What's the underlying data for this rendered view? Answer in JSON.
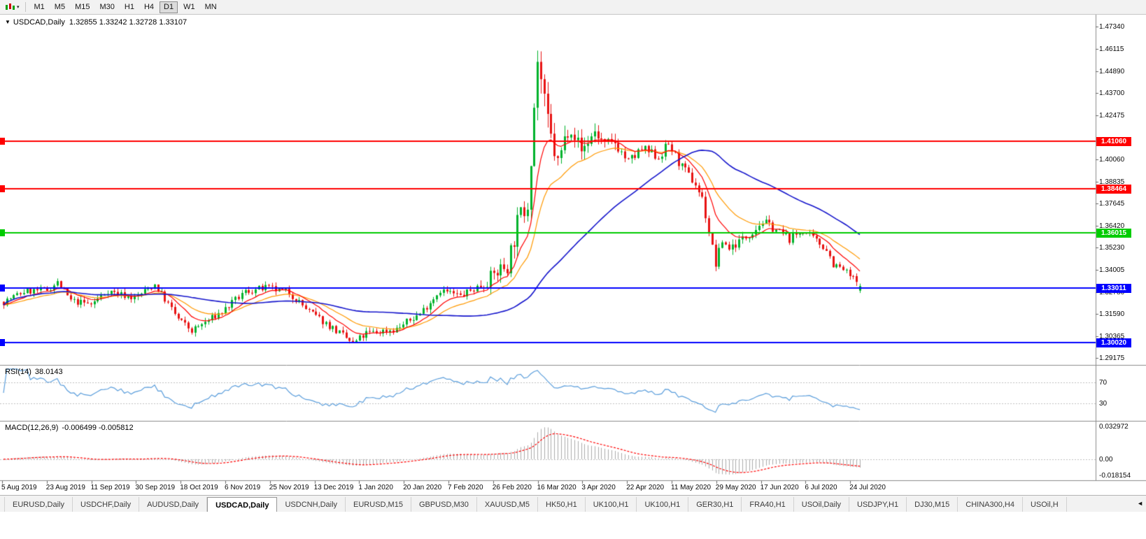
{
  "toolbar": {
    "timeframes": [
      "M1",
      "M5",
      "M15",
      "M30",
      "H1",
      "H4",
      "D1",
      "W1",
      "MN"
    ],
    "active_timeframe": "D1"
  },
  "chart": {
    "symbol_title": "USDCAD,Daily",
    "ohlc_text": "1.32855 1.33242 1.32728 1.33107"
  },
  "rsi_panel": {
    "label": "RSI(14)",
    "value": "38.0143",
    "levels": [
      70,
      30
    ]
  },
  "macd_panel": {
    "label": "MACD(12,26,9)",
    "values": "-0.006499 -0.005812",
    "scale": {
      "max": 0.033,
      "min": -0.0182
    },
    "axis": [
      {
        "value": 0.032972,
        "label": "0.032972"
      },
      {
        "value": 0,
        "label": "0.00"
      },
      {
        "value": -0.018154,
        "label": "-0.018154"
      }
    ]
  },
  "tabs": {
    "items": [
      "EURUSD,Daily",
      "USDCHF,Daily",
      "AUDUSD,Daily",
      "USDCAD,Daily",
      "USDCNH,Daily",
      "EURUSD,M15",
      "GBPUSD,M30",
      "XAUUSD,M5",
      "HK50,H1",
      "UK100,H1",
      "UK100,H1",
      "GER30,H1",
      "FRA40,H1",
      "USOil,Daily",
      "USDJPY,H1",
      "DJ30,M15",
      "CHINA300,H4",
      "USOil,H"
    ],
    "active": "USDCAD,Daily",
    "scroll_arrow": "◄"
  },
  "colors": {
    "candle_up": "#00B22C",
    "candle_down": "#E81212",
    "ma_fast": "#FF0000",
    "ma_mid": "#FF9900",
    "ma_slow": "#1515CC",
    "rsi_line": "#5B9EDC",
    "macd_histogram": "#ABABAB",
    "macd_signal": "#FF0000",
    "level_dotted": "#C0C0C0",
    "separator": "#8C8C8C",
    "axis_text": "#0A0A0A",
    "toolbar_bg": "#F2F2F2"
  },
  "chart_data": {
    "type": "candlestick",
    "title": "USDCAD,Daily",
    "candle_count": 256,
    "last_candle_ohlc": {
      "open": 1.32855,
      "high": 1.33242,
      "low": 1.32728,
      "close": 1.33107
    },
    "y_axis": {
      "min": 1.2878,
      "max": 1.48,
      "ticks": [
        1.4734,
        1.46115,
        1.4489,
        1.437,
        1.42475,
        1.4006,
        1.38835,
        1.37645,
        1.3642,
        1.3523,
        1.34005,
        1.3278,
        1.3159,
        1.30365,
        1.29175
      ]
    },
    "x_axis": {
      "labels": [
        "5 Aug 2019",
        "23 Aug 2019",
        "11 Sep 2019",
        "30 Sep 2019",
        "18 Oct 2019",
        "6 Nov 2019",
        "25 Nov 2019",
        "13 Dec 2019",
        "1 Jan 2020",
        "20 Jan 2020",
        "7 Feb 2020",
        "26 Feb 2020",
        "16 Mar 2020",
        "3 Apr 2020",
        "22 Apr 2020",
        "11 May 2020",
        "29 May 2020",
        "17 Jun 2020",
        "6 Jul 2020",
        "24 Jul 2020"
      ],
      "pixels_per_label": 63.8
    },
    "hlines": [
      {
        "price": 1.4106,
        "label": "1.41060",
        "color": "#FF0000"
      },
      {
        "price": 1.38464,
        "label": "1.38464",
        "color": "#FF0000"
      },
      {
        "price": 1.36015,
        "label": "1.36015",
        "color": "#00CC00"
      },
      {
        "price": 1.33011,
        "label": "1.33011",
        "color": "#0000FF"
      },
      {
        "price": 1.3002,
        "label": "1.30020",
        "color": "#0000FF"
      }
    ],
    "close_path": [
      [
        0,
        1.3225
      ],
      [
        6,
        1.328
      ],
      [
        13,
        1.329
      ],
      [
        16,
        1.333
      ],
      [
        20,
        1.323
      ],
      [
        26,
        1.321
      ],
      [
        31,
        1.3285
      ],
      [
        39,
        1.3245
      ],
      [
        45,
        1.332
      ],
      [
        52,
        1.313
      ],
      [
        56,
        1.3065
      ],
      [
        65,
        1.317
      ],
      [
        72,
        1.328
      ],
      [
        78,
        1.33
      ],
      [
        85,
        1.3275
      ],
      [
        91,
        1.317
      ],
      [
        98,
        1.308
      ],
      [
        104,
        1.2995
      ],
      [
        108,
        1.305
      ],
      [
        117,
        1.3075
      ],
      [
        124,
        1.316
      ],
      [
        130,
        1.329
      ],
      [
        136,
        1.3255
      ],
      [
        143,
        1.3325
      ],
      [
        147,
        1.339
      ],
      [
        150,
        1.343
      ],
      [
        153,
        1.365
      ],
      [
        156,
        1.378
      ],
      [
        158,
        1.43
      ],
      [
        159,
        1.455
      ],
      [
        160,
        1.444
      ],
      [
        161,
        1.43
      ],
      [
        163,
        1.412
      ],
      [
        165,
        1.398
      ],
      [
        168,
        1.418
      ],
      [
        169,
        1.419
      ],
      [
        172,
        1.405
      ],
      [
        176,
        1.416
      ],
      [
        179,
        1.408
      ],
      [
        182,
        1.41
      ],
      [
        186,
        1.399
      ],
      [
        190,
        1.406
      ],
      [
        195,
        1.402
      ],
      [
        198,
        1.409
      ],
      [
        202,
        1.396
      ],
      [
        206,
        1.387
      ],
      [
        208,
        1.379
      ],
      [
        212,
        1.343
      ],
      [
        214,
        1.356
      ],
      [
        216,
        1.352
      ],
      [
        221,
        1.358
      ],
      [
        226,
        1.3665
      ],
      [
        230,
        1.362
      ],
      [
        234,
        1.357
      ],
      [
        238,
        1.3615
      ],
      [
        241,
        1.357
      ],
      [
        245,
        1.3515
      ],
      [
        247,
        1.343
      ],
      [
        250,
        1.34
      ],
      [
        253,
        1.335
      ],
      [
        255,
        1.3311
      ]
    ],
    "volatility_path": [
      [
        0,
        0.0042
      ],
      [
        140,
        0.0048
      ],
      [
        148,
        0.011
      ],
      [
        155,
        0.016
      ],
      [
        162,
        0.016
      ],
      [
        172,
        0.01
      ],
      [
        185,
        0.007
      ],
      [
        200,
        0.006
      ],
      [
        215,
        0.006
      ],
      [
        230,
        0.005
      ],
      [
        255,
        0.0045
      ]
    ],
    "indicators": [
      {
        "name": "MA-fast",
        "type": "ema",
        "period": 10,
        "color": "#FF0000"
      },
      {
        "name": "MA-mid",
        "type": "ema",
        "period": 21,
        "color": "#FF9900"
      },
      {
        "name": "MA-slow",
        "type": "sma",
        "period": 55,
        "color": "#1515CC"
      },
      {
        "name": "RSI",
        "period": 14,
        "current": 38.0143,
        "levels": [
          70,
          30
        ]
      },
      {
        "name": "MACD",
        "fast": 12,
        "slow": 26,
        "signal_period": 9,
        "current": [
          -0.006499,
          -0.005812
        ]
      }
    ]
  }
}
